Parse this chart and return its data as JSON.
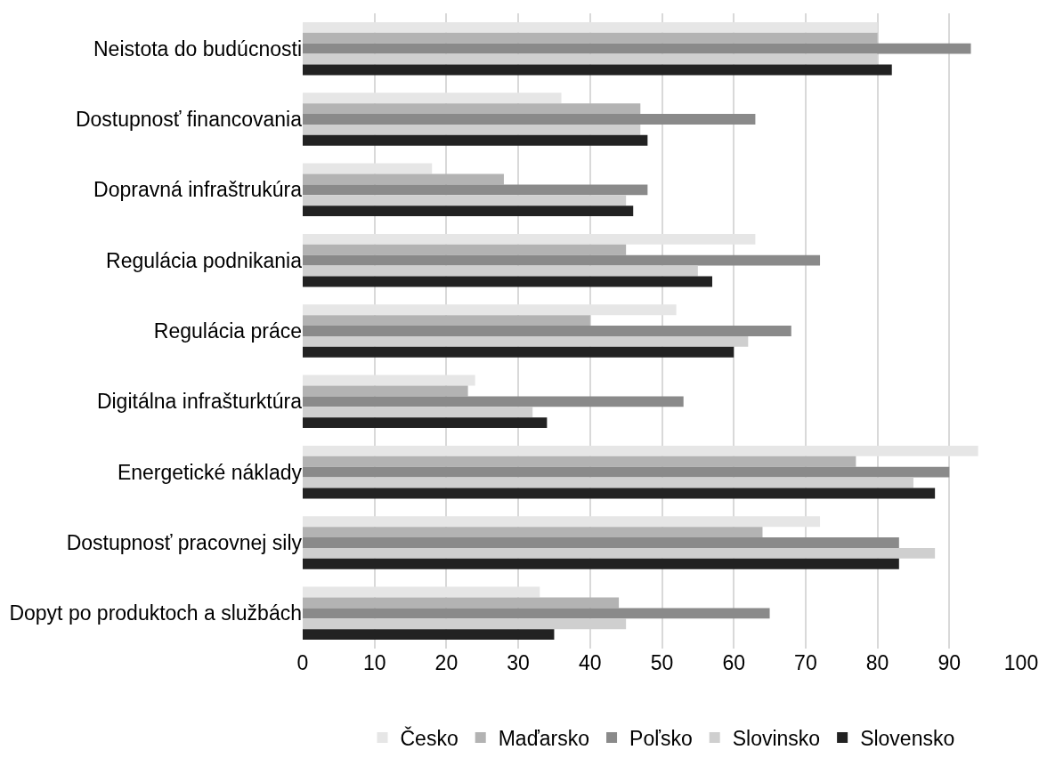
{
  "chart_data": {
    "type": "bar",
    "orientation": "horizontal",
    "categories": [
      "Neistota do budúcnosti",
      "Dostupnosť financovania",
      "Dopravná infraštrukúra",
      "Regulácia podnikania",
      "Regulácia práce",
      "Digitálna infrašturktúra",
      "Energetické náklady",
      "Dostupnosť pracovnej sily",
      "Dopyt po produktoch a službách"
    ],
    "series": [
      {
        "name": "Česko",
        "color": "#e6e6e6",
        "values": [
          80,
          36,
          18,
          63,
          52,
          24,
          94,
          72,
          33
        ]
      },
      {
        "name": "Maďarsko",
        "color": "#b3b3b3",
        "values": [
          80,
          47,
          28,
          45,
          40,
          23,
          77,
          64,
          44
        ]
      },
      {
        "name": "Poľsko",
        "color": "#8a8a8a",
        "values": [
          93,
          63,
          48,
          72,
          68,
          53,
          90,
          83,
          65
        ]
      },
      {
        "name": "Slovinsko",
        "color": "#cfcfcf",
        "values": [
          80,
          47,
          45,
          55,
          62,
          32,
          85,
          88,
          45
        ]
      },
      {
        "name": "Slovensko",
        "color": "#222222",
        "values": [
          82,
          48,
          46,
          57,
          60,
          34,
          88,
          83,
          35
        ]
      }
    ],
    "xlim": [
      0,
      100
    ],
    "xticks": [
      0,
      10,
      20,
      30,
      40,
      50,
      60,
      70,
      80,
      90,
      100
    ],
    "grid": "x",
    "legend": "bottom"
  }
}
